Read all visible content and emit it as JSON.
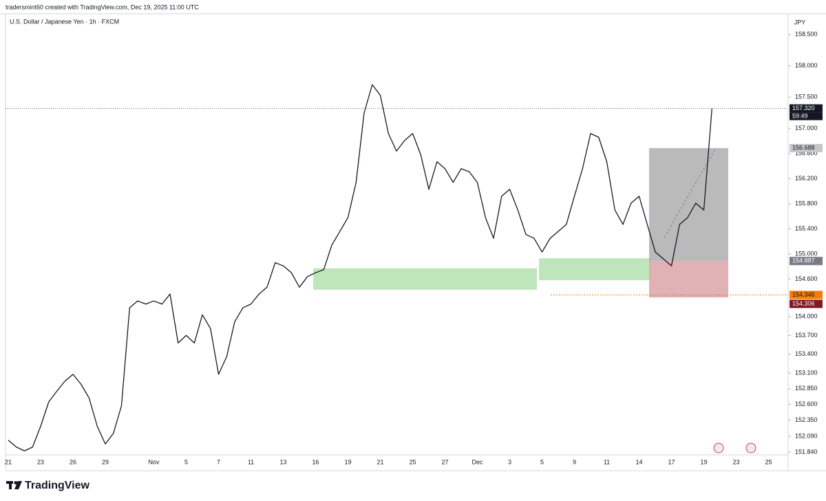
{
  "header": {
    "credit": "tradersmint60 created with TradingView.com, Dec 19, 2025 11:00 UTC",
    "brand": "TradingView"
  },
  "chart_data": {
    "type": "line",
    "title": "U.S. Dollar / Japanese Yen · 1h · FXCM",
    "currency": "JPY",
    "color": "#131722",
    "grid": false,
    "categories": [
      "21",
      null,
      null,
      null,
      "23",
      null,
      null,
      null,
      "26",
      null,
      null,
      null,
      "29",
      null,
      null,
      null,
      null,
      null,
      "Nov",
      null,
      null,
      null,
      "5",
      null,
      null,
      null,
      "7",
      null,
      null,
      null,
      "11",
      null,
      null,
      null,
      "13",
      null,
      null,
      null,
      "16",
      null,
      null,
      null,
      "19",
      null,
      null,
      null,
      "21",
      null,
      null,
      null,
      "25",
      null,
      null,
      null,
      "27",
      null,
      null,
      null,
      "Dec",
      null,
      null,
      null,
      "3",
      null,
      null,
      null,
      "5",
      null,
      null,
      null,
      "9",
      null,
      null,
      null,
      "11",
      null,
      null,
      null,
      "14",
      null,
      null,
      null,
      "17",
      null,
      null,
      null,
      "19",
      null,
      null,
      null,
      "23",
      null,
      null,
      null,
      "25"
    ],
    "values": [
      152.03,
      151.92,
      151.86,
      151.92,
      152.25,
      152.64,
      152.81,
      152.97,
      153.08,
      152.92,
      152.7,
      152.25,
      151.97,
      152.14,
      152.58,
      154.14,
      154.25,
      154.2,
      154.25,
      154.2,
      154.36,
      153.58,
      153.7,
      153.58,
      154.03,
      153.81,
      153.08,
      153.36,
      153.92,
      154.14,
      154.2,
      154.36,
      154.47,
      154.86,
      154.81,
      154.7,
      154.47,
      154.64,
      154.7,
      154.75,
      155.14,
      155.36,
      155.58,
      156.14,
      157.25,
      157.7,
      157.53,
      156.92,
      156.64,
      156.81,
      156.92,
      156.58,
      156.03,
      156.47,
      156.36,
      156.14,
      156.36,
      156.31,
      156.14,
      155.58,
      155.25,
      155.92,
      156.03,
      155.7,
      155.31,
      155.25,
      155.03,
      155.25,
      155.36,
      155.47,
      155.92,
      156.36,
      156.92,
      156.86,
      156.47,
      155.7,
      155.47,
      155.81,
      155.92,
      155.47,
      155.03,
      154.92,
      154.81,
      155.47,
      155.58,
      155.81,
      155.7,
      157.32,
      null,
      null,
      null,
      null,
      null,
      null,
      null
    ],
    "ylim": [
      151.795,
      158.83
    ],
    "yticks": [
      {
        "value": 158.5,
        "label": "158.500"
      },
      {
        "value": 158.0,
        "label": "158.000"
      },
      {
        "value": 157.5,
        "label": "157.500"
      },
      {
        "value": 157.0,
        "label": "157.000"
      },
      {
        "value": 156.6,
        "label": "156.600"
      },
      {
        "value": 156.2,
        "label": "156.200"
      },
      {
        "value": 155.8,
        "label": "155.800"
      },
      {
        "value": 155.4,
        "label": "155.400"
      },
      {
        "value": 155.0,
        "label": "155.000"
      },
      {
        "value": 154.6,
        "label": "154.600"
      },
      {
        "value": 154.0,
        "label": "154.000"
      },
      {
        "value": 153.7,
        "label": "153.700"
      },
      {
        "value": 153.4,
        "label": "153.400"
      },
      {
        "value": 153.1,
        "label": "153.100"
      },
      {
        "value": 152.85,
        "label": "152.850"
      },
      {
        "value": 152.6,
        "label": "152.600"
      },
      {
        "value": 152.35,
        "label": "152.350"
      },
      {
        "value": 152.09,
        "label": "152.090"
      },
      {
        "value": 151.84,
        "label": "151.840"
      }
    ],
    "last_price": {
      "value": 157.32,
      "label": "157.320",
      "countdown": "59:49",
      "color": "#131722"
    },
    "position": {
      "target": {
        "value": 156.688,
        "label": "156.688"
      },
      "entry": {
        "value": 154.887,
        "label": "154.887"
      },
      "stop": {
        "value": 154.306,
        "label": "154.306"
      },
      "profit_color": "#a3a3a3",
      "loss_color": "#dba3a8"
    },
    "level": {
      "value": 154.346,
      "label": "154.346",
      "color": "#f57c00"
    },
    "zones": [
      {
        "low": 154.43,
        "high": 154.77,
        "color": "#bfe5bb"
      },
      {
        "low": 154.58,
        "high": 154.93,
        "color": "#bfe5bb"
      }
    ]
  }
}
